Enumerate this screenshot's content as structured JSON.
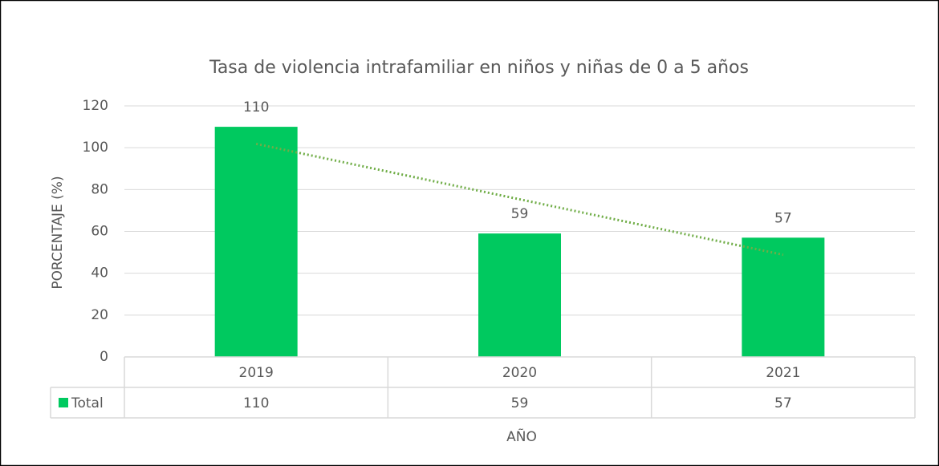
{
  "chart_data": {
    "type": "bar",
    "title": "Tasa de violencia intrafamiliar en niños y niñas de 0 a 5 años",
    "x_label": "AÑO",
    "y_label": "PORCENTAJE (%)",
    "categories": [
      "2019",
      "2020",
      "2021"
    ],
    "series": [
      {
        "name": "Total",
        "color": "#00c95f",
        "values": [
          110,
          59,
          57
        ]
      }
    ],
    "ylim": [
      0,
      120
    ],
    "yticks": [
      0,
      20,
      40,
      60,
      80,
      100,
      120
    ],
    "grid": true,
    "trendline": true,
    "trendline_color": "#70ad47",
    "data_table": true
  }
}
